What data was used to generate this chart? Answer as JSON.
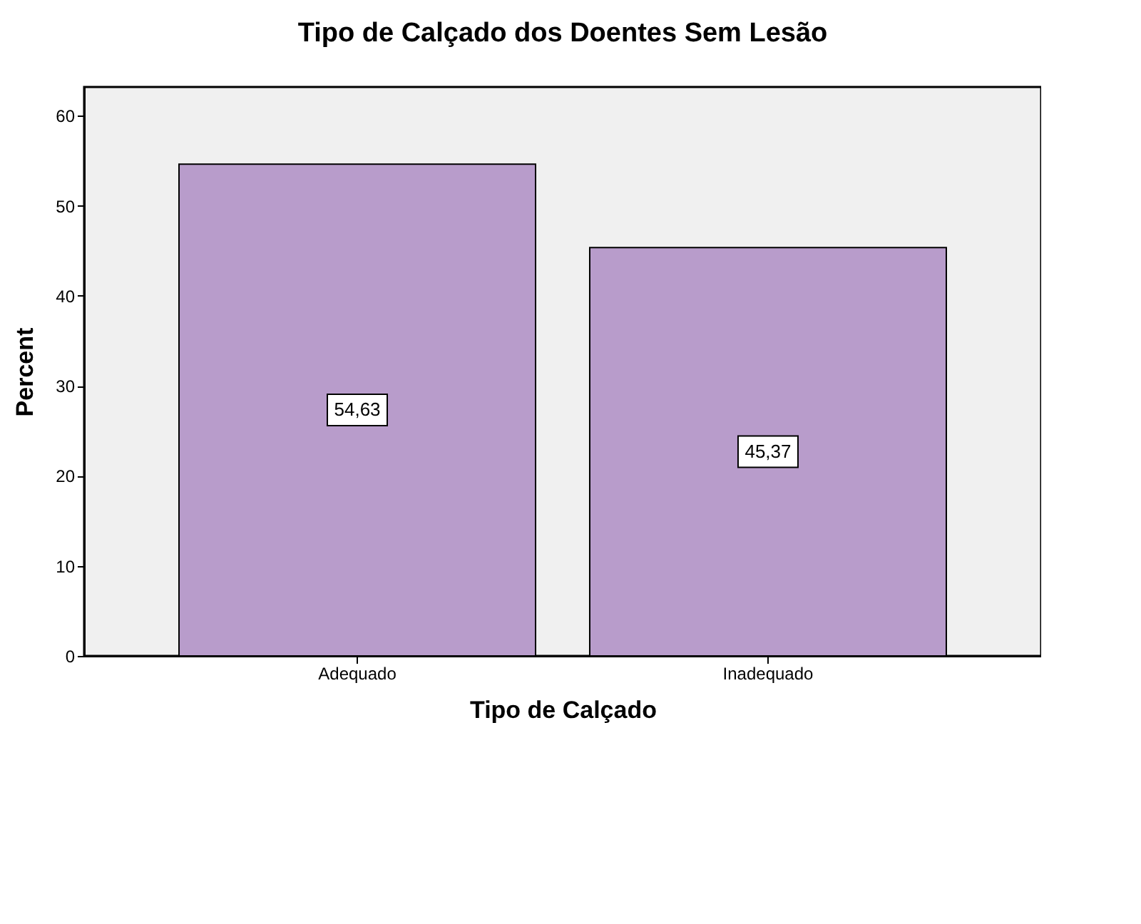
{
  "chart_data": {
    "type": "bar",
    "title": "Tipo de Calçado dos Doentes Sem Lesão",
    "xlabel": "Tipo de Calçado",
    "ylabel": "Percent",
    "categories": [
      "Adequado",
      "Inadequado"
    ],
    "values": [
      54.63,
      45.37
    ],
    "color": "#b89ccb",
    "value_labels": [
      "54,63",
      "45,37"
    ],
    "ylim": [
      0,
      63.2
    ],
    "yticks": [
      0,
      10,
      20,
      30,
      40,
      50,
      60
    ],
    "grid": false
  }
}
